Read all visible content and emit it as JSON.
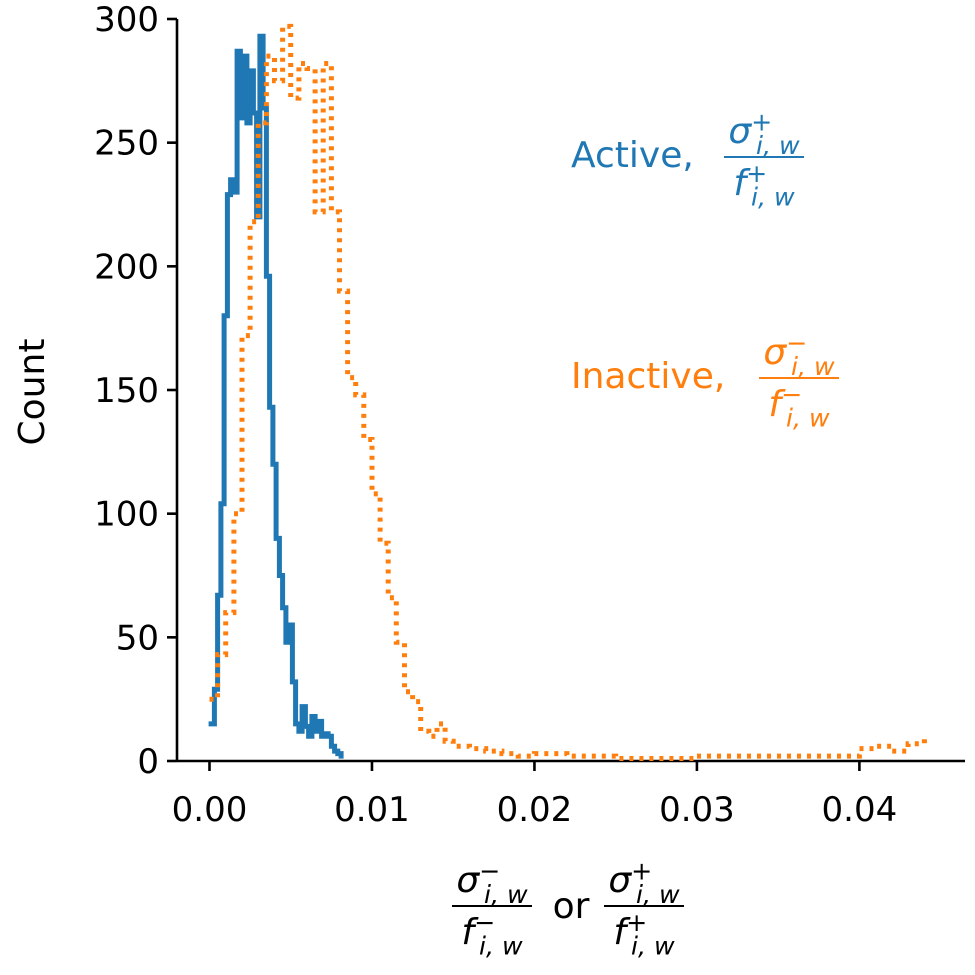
{
  "chart_data": {
    "type": "line",
    "title": "",
    "xlim": [
      -0.002,
      0.0465
    ],
    "ylim": [
      0,
      300
    ],
    "xticks": [
      0.0,
      0.01,
      0.02,
      0.03,
      0.04
    ],
    "xtick_labels": [
      "0.00",
      "0.01",
      "0.02",
      "0.03",
      "0.04"
    ],
    "yticks": [
      0,
      50,
      100,
      150,
      200,
      250,
      300
    ],
    "ytick_labels": [
      "0",
      "50",
      "100",
      "150",
      "200",
      "250",
      "300"
    ],
    "ylabel": "Count",
    "xlabel_parts": {
      "left": {
        "num_base": "σ",
        "num_sup": "−",
        "num_sub": "i, w",
        "den_base": "f",
        "den_sup": "−",
        "den_sub": "i, w"
      },
      "connector": "or",
      "right": {
        "num_base": "σ",
        "num_sup": "+",
        "num_sub": "i, w",
        "den_base": "f",
        "den_sup": "+",
        "den_sub": "i, w"
      }
    },
    "grid": false,
    "series": [
      {
        "name": "Active",
        "label_math": {
          "num_base": "σ",
          "num_sup": "+",
          "num_sub": "i, w",
          "den_base": "f",
          "den_sup": "+",
          "den_sub": "i, w"
        },
        "color": "#1f77b4",
        "style": "solid-step",
        "x": [
          0.0001,
          0.0003,
          0.0005,
          0.0007,
          0.0009,
          0.0011,
          0.0013,
          0.0015,
          0.0017,
          0.0019,
          0.0021,
          0.0023,
          0.0025,
          0.0027,
          0.0029,
          0.0031,
          0.0033,
          0.0035,
          0.0037,
          0.0039,
          0.0041,
          0.0043,
          0.0045,
          0.0047,
          0.0049,
          0.0051,
          0.0053,
          0.0055,
          0.0057,
          0.0059,
          0.0061,
          0.0063,
          0.0065,
          0.0067,
          0.0069,
          0.0071,
          0.0073,
          0.0075,
          0.0077,
          0.0079,
          0.0081
        ],
        "y": [
          15,
          29,
          67,
          104,
          180,
          229,
          235,
          230,
          287,
          260,
          285,
          258,
          279,
          262,
          220,
          293,
          264,
          196,
          143,
          120,
          90,
          75,
          62,
          48,
          55,
          32,
          15,
          12,
          22,
          14,
          10,
          18,
          12,
          16,
          10,
          11,
          10,
          6,
          4,
          3,
          2
        ]
      },
      {
        "name": "Inactive",
        "label_math": {
          "num_base": "σ",
          "num_sup": "−",
          "num_sub": "i, w",
          "den_base": "f",
          "den_sup": "−",
          "den_sub": "i, w"
        },
        "color": "#ff7f0e",
        "style": "dotted-step",
        "x": [
          0.0,
          0.0005,
          0.001,
          0.0015,
          0.002,
          0.0025,
          0.003,
          0.0035,
          0.004,
          0.0045,
          0.005,
          0.0055,
          0.006,
          0.0065,
          0.007,
          0.0075,
          0.008,
          0.0085,
          0.009,
          0.0095,
          0.01,
          0.0105,
          0.011,
          0.0115,
          0.012,
          0.0125,
          0.013,
          0.0135,
          0.014,
          0.0145,
          0.015,
          0.016,
          0.017,
          0.018,
          0.019,
          0.02,
          0.022,
          0.025,
          0.03,
          0.035,
          0.038,
          0.04,
          0.041,
          0.042,
          0.043,
          0.044
        ],
        "y": [
          25,
          43,
          60,
          100,
          172,
          218,
          258,
          285,
          275,
          297,
          268,
          282,
          280,
          222,
          282,
          222,
          190,
          155,
          148,
          130,
          108,
          88,
          66,
          48,
          28,
          24,
          12,
          10,
          15,
          8,
          6,
          5,
          4,
          3,
          2,
          3,
          2,
          1,
          2,
          2,
          2,
          5,
          6,
          4,
          7,
          9
        ]
      }
    ]
  }
}
